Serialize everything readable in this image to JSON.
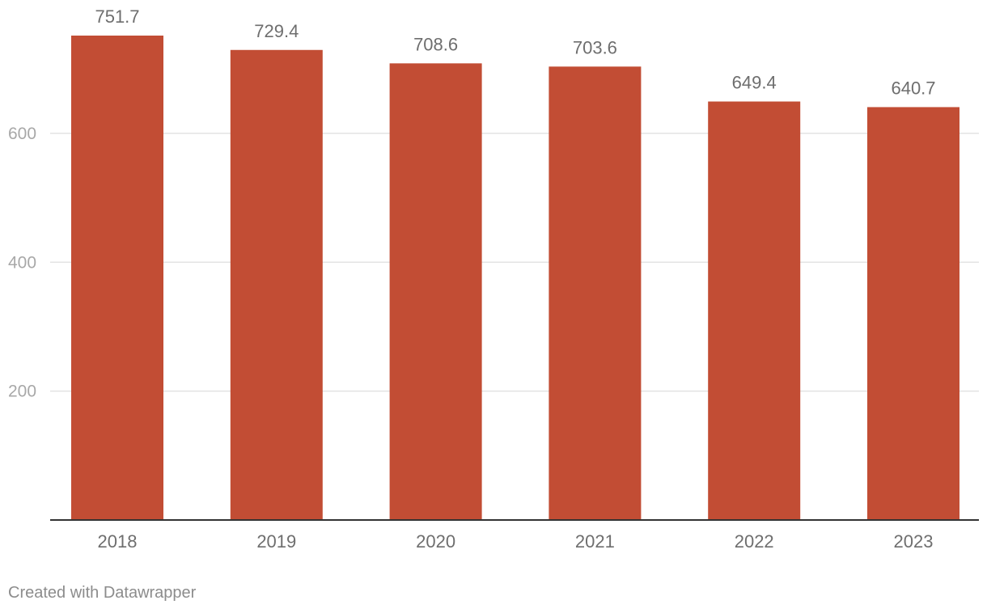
{
  "chart_data": {
    "type": "bar",
    "categories": [
      "2018",
      "2019",
      "2020",
      "2021",
      "2022",
      "2023"
    ],
    "values": [
      751.7,
      729.4,
      708.6,
      703.6,
      649.4,
      640.7
    ],
    "value_labels": [
      "751.7",
      "729.4",
      "708.6",
      "703.6",
      "649.4",
      "640.7"
    ],
    "y_ticks": [
      200,
      400,
      600
    ],
    "ylim": [
      0,
      751.7
    ],
    "grid": true,
    "bar_color": "#c24d34"
  },
  "footer": {
    "credit": "Created with Datawrapper"
  }
}
